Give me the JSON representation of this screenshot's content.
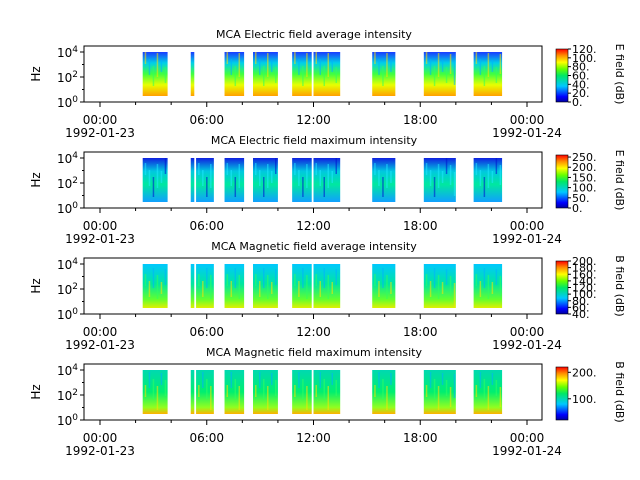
{
  "chart_data": [
    {
      "type": "heatmap",
      "title": "MCA  Electric field average intensity",
      "ylabel": "Hz",
      "y_scale": "log",
      "y_ticks": [
        "10^0",
        "10^2",
        "10^4"
      ],
      "x_ticks": [
        {
          "time": "00:00",
          "date": "1992-01-23"
        },
        {
          "time": "06:00",
          "date": ""
        },
        {
          "time": "12:00",
          "date": ""
        },
        {
          "time": "18:00",
          "date": ""
        },
        {
          "time": "00:00",
          "date": "1992-01-24"
        }
      ],
      "colorbar": {
        "label": "E field (dB)",
        "range": [
          0,
          120
        ],
        "ticks": [
          "0.",
          "20.",
          "40.",
          "60.",
          "80.",
          "100.",
          "120."
        ]
      },
      "data_intervals_hours": [
        [
          2.4,
          3.8
        ],
        [
          5.1,
          5.3
        ],
        [
          7.0,
          8.1
        ],
        [
          8.6,
          10.0
        ],
        [
          10.8,
          11.9
        ],
        [
          12.0,
          13.5
        ],
        [
          15.3,
          16.6
        ],
        [
          18.2,
          20.0
        ],
        [
          21.0,
          22.6
        ]
      ],
      "features": "broadband intensity up to ~10^4 Hz, highest (orange/red, ~80-100 dB) near 10^1-10^2 Hz"
    },
    {
      "type": "heatmap",
      "title": "MCA  Electric field maximum intensity",
      "ylabel": "Hz",
      "y_scale": "log",
      "y_ticks": [
        "10^0",
        "10^2",
        "10^4"
      ],
      "x_ticks": [
        {
          "time": "00:00",
          "date": "1992-01-23"
        },
        {
          "time": "06:00",
          "date": ""
        },
        {
          "time": "12:00",
          "date": ""
        },
        {
          "time": "18:00",
          "date": ""
        },
        {
          "time": "00:00",
          "date": "1992-01-24"
        }
      ],
      "colorbar": {
        "label": "E field (dB)",
        "range": [
          0,
          260
        ],
        "ticks": [
          "0.",
          "50.",
          "100.",
          "150.",
          "200.",
          "250."
        ]
      },
      "data_intervals_hours": [
        [
          2.4,
          3.8
        ],
        [
          5.1,
          5.3
        ],
        [
          5.4,
          6.4
        ],
        [
          7.0,
          8.1
        ],
        [
          8.6,
          10.0
        ],
        [
          10.8,
          11.9
        ],
        [
          12.0,
          13.5
        ],
        [
          15.3,
          16.6
        ],
        [
          18.2,
          20.0
        ],
        [
          21.0,
          22.6
        ]
      ],
      "features": "mostly cyan-green (~100-130 dB), blue streaks at low frequencies, short orange spikes near 02:30 and 05:20"
    },
    {
      "type": "heatmap",
      "title": "MCA  Magnetic field average intensity",
      "ylabel": "Hz",
      "y_scale": "log",
      "y_ticks": [
        "10^0",
        "10^2",
        "10^4"
      ],
      "x_ticks": [
        {
          "time": "00:00",
          "date": "1992-01-23"
        },
        {
          "time": "06:00",
          "date": ""
        },
        {
          "time": "12:00",
          "date": ""
        },
        {
          "time": "18:00",
          "date": ""
        },
        {
          "time": "00:00",
          "date": "1992-01-24"
        }
      ],
      "colorbar": {
        "label": "B field (dB)",
        "range": [
          40,
          200
        ],
        "ticks": [
          "40.",
          "60.",
          "80.",
          "100.",
          "120.",
          "140.",
          "160.",
          "180.",
          "200."
        ]
      },
      "data_intervals_hours": [
        [
          2.4,
          3.8
        ],
        [
          5.1,
          5.3
        ],
        [
          5.4,
          6.4
        ],
        [
          7.0,
          8.1
        ],
        [
          8.6,
          10.0
        ],
        [
          10.8,
          11.9
        ],
        [
          12.0,
          13.5
        ],
        [
          15.3,
          16.6
        ],
        [
          18.2,
          20.0
        ],
        [
          21.0,
          22.6
        ]
      ],
      "features": "cyan at high frequency grading to green/yellow near 10^1 Hz"
    },
    {
      "type": "heatmap",
      "title": "MCA  Magnetic field maximum intensity",
      "ylabel": "Hz",
      "y_scale": "log",
      "y_ticks": [
        "10^0",
        "10^2",
        "10^4"
      ],
      "x_ticks": [
        {
          "time": "00:00",
          "date": "1992-01-23"
        },
        {
          "time": "06:00",
          "date": ""
        },
        {
          "time": "12:00",
          "date": ""
        },
        {
          "time": "18:00",
          "date": ""
        },
        {
          "time": "00:00",
          "date": "1992-01-24"
        }
      ],
      "colorbar": {
        "label": "B field (dB)",
        "range": [
          20,
          220
        ],
        "ticks": [
          "100.",
          "200."
        ]
      },
      "data_intervals_hours": [
        [
          2.4,
          3.8
        ],
        [
          5.1,
          5.3
        ],
        [
          5.4,
          6.4
        ],
        [
          7.0,
          8.1
        ],
        [
          8.6,
          10.0
        ],
        [
          10.8,
          11.9
        ],
        [
          12.0,
          13.5
        ],
        [
          15.3,
          16.6
        ],
        [
          18.2,
          20.0
        ],
        [
          21.0,
          22.6
        ]
      ],
      "features": "green-dominated, yellow/orange near lowest frequencies, blue streaks at 02:30 and 05:20"
    }
  ]
}
